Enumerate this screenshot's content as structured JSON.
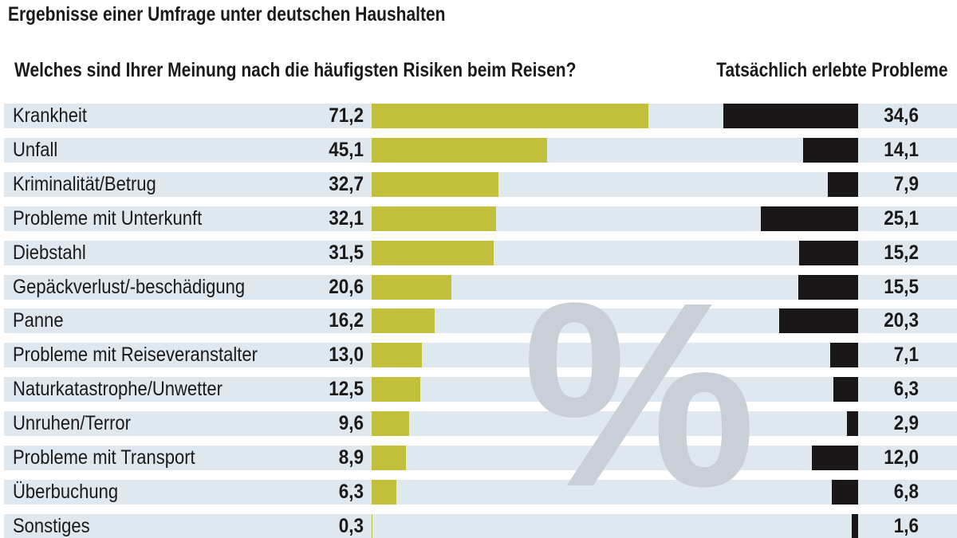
{
  "chart_data": [
    {
      "type": "bar",
      "orientation": "horizontal",
      "title": "Ergebnisse einer Umfrage unter deutschen Haushalten",
      "subtitle": "Welches sind Ihrer Meinung nach die häufigsten Risiken beim Reisen?",
      "unit": "%",
      "categories": [
        "Krankheit",
        "Unfall",
        "Kriminalität/Betrug",
        "Probleme mit Unterkunft",
        "Diebstahl",
        "Gepäckverlust/-beschädigung",
        "Panne",
        "Probleme mit Reiseveranstalter",
        "Naturkatastrophe/Unwetter",
        "Unruhen/Terror",
        "Probleme mit Transport",
        "Überbuchung",
        "Sonstiges"
      ],
      "values": [
        71.2,
        45.1,
        32.7,
        32.1,
        31.5,
        20.6,
        16.2,
        13.0,
        12.5,
        9.6,
        8.9,
        6.3,
        0.3
      ],
      "labels": [
        "71,2",
        "45,1",
        "32,7",
        "32,1",
        "31,5",
        "20,6",
        "16,2",
        "13,0",
        "12,5",
        "9,6",
        "8,9",
        "6,3",
        "0,3"
      ],
      "color": "#c2bf3a",
      "direction": "left-to-right"
    },
    {
      "type": "bar",
      "orientation": "horizontal",
      "subtitle": "Tatsächlich erlebte Probleme",
      "values": [
        34.6,
        14.1,
        7.9,
        25.1,
        15.2,
        15.5,
        20.3,
        7.1,
        6.3,
        2.9,
        12.0,
        6.8,
        1.6
      ],
      "labels": [
        "34,6",
        "14,1",
        "7,9",
        "25,1",
        "15,2",
        "15,5",
        "20,3",
        "7,1",
        "6,3",
        "2,9",
        "12,0",
        "6,8",
        "1,6"
      ],
      "color": "#1a1718",
      "direction": "right-to-left"
    }
  ],
  "watermark": "%",
  "colors": {
    "band": "#dfe7ef",
    "watermark": "#c9cfd6"
  }
}
